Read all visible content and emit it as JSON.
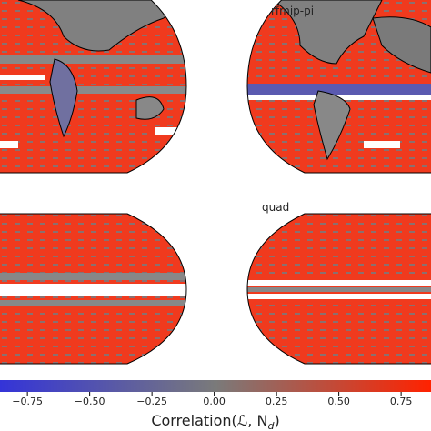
{
  "panels": [
    {
      "title": "rfmip-pi"
    },
    {
      "title": "quad"
    }
  ],
  "colorbar": {
    "label": "Correlation(ℒ, N",
    "label_sub": "d",
    "label_end": ")",
    "xlim": [
      -0.86,
      0.87
    ],
    "colors": [
      "#3434d8",
      "#7a7a7a",
      "#ff2200"
    ],
    "xticks": [
      {
        "value": -0.75,
        "label": "−0.75"
      },
      {
        "value": -0.5,
        "label": "−0.50"
      },
      {
        "value": -0.25,
        "label": "−0.25"
      },
      {
        "value": 0,
        "label": "0.00"
      },
      {
        "value": 0.25,
        "label": "0.25"
      },
      {
        "value": 0.5,
        "label": "0.50"
      },
      {
        "value": 0.75,
        "label": "0.75"
      }
    ]
  }
}
